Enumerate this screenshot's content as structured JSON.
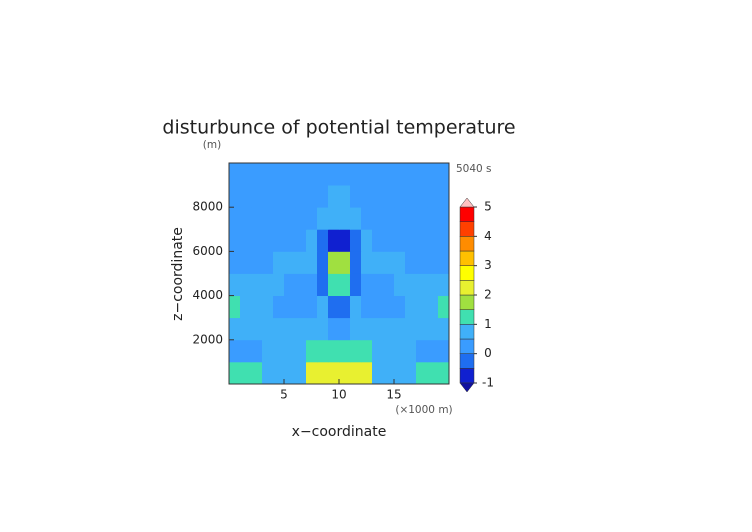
{
  "chart_data": {
    "type": "heatmap",
    "title": "disturbunce of potential temperature",
    "y_unit": "(m)",
    "time_label": "5040 s",
    "x_label": "x−coordinate",
    "y_label": "z−coordinate",
    "x_unit": "(×1000 m)",
    "x": [
      0.5,
      1.5,
      2.5,
      3.5,
      4.5,
      5.5,
      6.5,
      7.5,
      8.5,
      9.5,
      10.5,
      11.5,
      12.5,
      13.5,
      14.5,
      15.5,
      16.5,
      17.5,
      18.5,
      19.5
    ],
    "y": [
      500,
      1500,
      2500,
      3500,
      4500,
      5500,
      6500,
      7500,
      8500,
      9500
    ],
    "values": [
      [
        1.3,
        1.3,
        1.3,
        0.7,
        0.7,
        0.7,
        0.7,
        2.2,
        2.2,
        2.2,
        2.2,
        2.2,
        2.2,
        0.7,
        0.7,
        0.7,
        0.7,
        1.3,
        1.3,
        1.3
      ],
      [
        0.2,
        0.2,
        0.2,
        0.7,
        0.7,
        0.7,
        0.7,
        1.3,
        1.3,
        1.3,
        1.3,
        1.3,
        1.3,
        0.7,
        0.7,
        0.7,
        0.7,
        0.2,
        0.2,
        0.2
      ],
      [
        0.7,
        0.7,
        0.7,
        0.7,
        0.7,
        0.7,
        0.7,
        0.7,
        0.7,
        0.2,
        0.2,
        0.7,
        0.7,
        0.7,
        0.7,
        0.7,
        0.7,
        0.7,
        0.7,
        0.7
      ],
      [
        1.2,
        0.7,
        0.7,
        0.7,
        0.2,
        0.2,
        0.2,
        0.2,
        0.7,
        -0.3,
        -0.3,
        0.7,
        0.2,
        0.2,
        0.2,
        0.2,
        0.7,
        0.7,
        0.7,
        1.2
      ],
      [
        0.7,
        0.7,
        0.7,
        0.7,
        0.7,
        0.2,
        0.2,
        0.2,
        -0.4,
        1.3,
        1.3,
        -0.4,
        0.2,
        0.2,
        0.2,
        0.7,
        0.7,
        0.7,
        0.7,
        0.7
      ],
      [
        0.2,
        0.2,
        0.2,
        0.2,
        0.6,
        0.6,
        0.7,
        0.6,
        -0.5,
        1.6,
        1.6,
        -0.5,
        0.6,
        0.7,
        0.6,
        0.6,
        0.2,
        0.2,
        0.2,
        0.2
      ],
      [
        0.3,
        0.3,
        0.2,
        0.2,
        0.2,
        0.2,
        0.2,
        0.7,
        -0.3,
        -0.6,
        -0.6,
        -0.3,
        0.7,
        0.2,
        0.2,
        0.2,
        0.2,
        0.2,
        0.3,
        0.3
      ],
      [
        0.2,
        0.2,
        0.2,
        0.2,
        0.2,
        0.2,
        0.2,
        0.2,
        0.7,
        0.7,
        0.7,
        0.7,
        0.2,
        0.2,
        0.2,
        0.2,
        0.2,
        0.2,
        0.2,
        0.2
      ],
      [
        0.2,
        0.2,
        0.2,
        0.2,
        0.2,
        0.2,
        0.2,
        0.2,
        0.2,
        0.6,
        0.6,
        0.2,
        0.2,
        0.2,
        0.2,
        0.2,
        0.2,
        0.2,
        0.2,
        0.2
      ],
      [
        0.2,
        0.2,
        0.2,
        0.2,
        0.2,
        0.2,
        0.2,
        0.2,
        0.2,
        0.2,
        0.2,
        0.2,
        0.2,
        0.2,
        0.2,
        0.2,
        0.2,
        0.2,
        0.2,
        0.2
      ]
    ],
    "xlim": [
      0,
      20
    ],
    "xticks": [
      5,
      10,
      15
    ],
    "ylim": [
      0,
      10000
    ],
    "yticks": [
      2000,
      4000,
      6000,
      8000
    ],
    "levels": [
      -1,
      -0.5,
      0,
      0.5,
      1,
      1.5,
      2,
      2.5,
      3,
      3.5,
      4,
      4.5,
      5
    ],
    "colors": [
      "#1020d0",
      "#1f6ef0",
      "#3a9cff",
      "#40b0f8",
      "#40e0b0",
      "#a0e040",
      "#e8f030",
      "#ffff00",
      "#ffc000",
      "#ff8c00",
      "#ff4000",
      "#ff0000",
      "#ff8a8a"
    ],
    "under_color": "#1010a0",
    "over_color": "#ffc0c0",
    "colorbar_ticks": [
      -1,
      0,
      1,
      2,
      3,
      4,
      5
    ]
  }
}
